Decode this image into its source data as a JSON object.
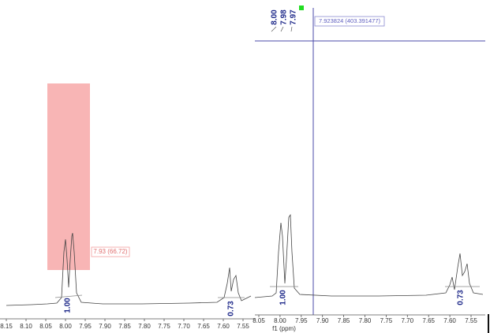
{
  "main_spectrum": {
    "selection_label": "7.93 (66.72)",
    "integrals": [
      "1.00",
      "0.73"
    ],
    "axis_ticks": [
      "8.15",
      "8.10",
      "8.05",
      "8.00",
      "7.95",
      "7.90",
      "7.85",
      "7.80",
      "7.75",
      "7.70",
      "7.65",
      "7.60",
      "7.55"
    ]
  },
  "inset": {
    "peak_labels": [
      "8.00",
      "7.98",
      "7.97"
    ],
    "cursor_readout": "7.923824 (403.391477)",
    "integrals": [
      "1.00",
      "0.73"
    ],
    "axis_ticks": [
      "8.05",
      "8.00",
      "7.95",
      "7.90",
      "7.85",
      "7.80",
      "7.75",
      "7.70",
      "7.65",
      "7.60",
      "7.55"
    ],
    "axis_title": "f1 (ppm)"
  }
}
